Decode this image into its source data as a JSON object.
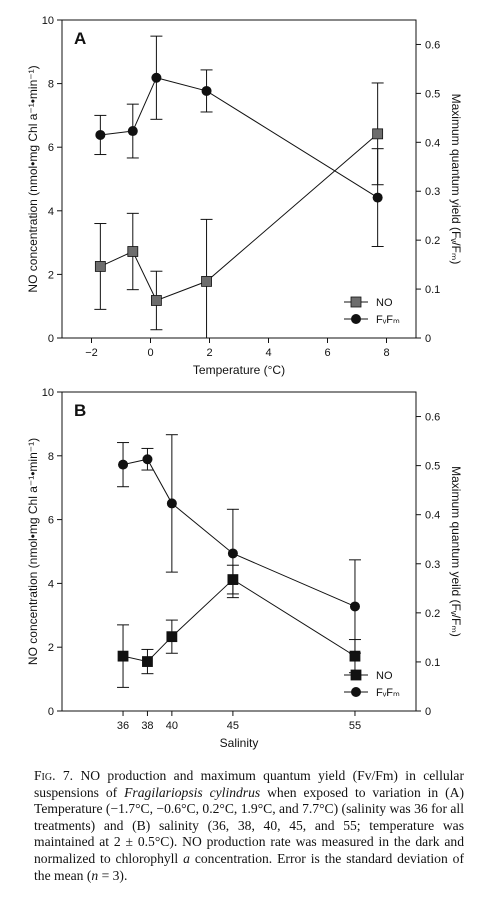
{
  "chart_data": [
    {
      "type": "line",
      "panel_label": "A",
      "xlabel": "Temperature (°C)",
      "ylabel": "NO concentration (nmol•mg Chl a⁻¹•min⁻¹)",
      "y2label": "Maximum quantum yield (Fᵥ/Fₘ)",
      "xlim": [
        -3,
        9
      ],
      "ylim": [
        0,
        10
      ],
      "y2lim": [
        0,
        0.65
      ],
      "xticks": [
        "-2",
        "0",
        "2",
        "4",
        "6",
        "8"
      ],
      "yticks": [
        "0",
        "2",
        "4",
        "6",
        "8",
        "10"
      ],
      "y2ticks": [
        "0",
        "0.1",
        "0.2",
        "0.3",
        "0.4",
        "0.5",
        "0.6"
      ],
      "legend_position": "bottom-right",
      "series": [
        {
          "name": "NO",
          "axis": "left",
          "marker": "square",
          "color": "#6d6d6d",
          "x": [
            -1.7,
            -0.6,
            0.2,
            1.9,
            7.7
          ],
          "y": [
            2.25,
            2.72,
            1.18,
            1.78,
            6.42
          ],
          "err": [
            1.35,
            1.2,
            0.92,
            1.95,
            1.6
          ]
        },
        {
          "name": "FᵥFₘ",
          "axis": "right",
          "marker": "circle",
          "color": "#111111",
          "x": [
            -1.7,
            -0.6,
            0.2,
            1.9,
            7.7
          ],
          "y": [
            0.415,
            0.423,
            0.532,
            0.505,
            0.287
          ],
          "err": [
            0.04,
            0.055,
            0.085,
            0.043,
            0.1
          ]
        }
      ]
    },
    {
      "type": "line",
      "panel_label": "B",
      "xlabel": "Salinity",
      "ylabel": "NO concentration (nmol•mg Chl a⁻¹•min⁻¹)",
      "y2label": "Maximum quantum yeild (Fᵥ/Fₘ)",
      "xlim": [
        31,
        60
      ],
      "ylim": [
        0,
        10
      ],
      "y2lim": [
        0,
        0.65
      ],
      "xticks": [
        "36",
        "38",
        "40",
        "45",
        "55"
      ],
      "yticks": [
        "0",
        "2",
        "4",
        "6",
        "8",
        "10"
      ],
      "y2ticks": [
        "0",
        "0.1",
        "0.2",
        "0.3",
        "0.4",
        "0.5",
        "0.6"
      ],
      "legend_position": "bottom-right",
      "series": [
        {
          "name": "NO",
          "axis": "left",
          "marker": "square",
          "color": "#111111",
          "x": [
            36,
            38,
            40,
            45,
            55
          ],
          "y": [
            1.72,
            1.55,
            2.33,
            4.12,
            1.72
          ],
          "err": [
            0.98,
            0.38,
            0.52,
            0.45,
            0.52
          ]
        },
        {
          "name": "FᵥFₘ",
          "axis": "right",
          "marker": "circle",
          "color": "#111111",
          "x": [
            36,
            38,
            40,
            45,
            55
          ],
          "y": [
            0.502,
            0.513,
            0.423,
            0.321,
            0.213
          ],
          "err": [
            0.045,
            0.022,
            0.14,
            0.09,
            0.095
          ]
        }
      ]
    }
  ],
  "caption": {
    "label": "Fig. 7.",
    "text_before": " NO production and maximum quantum yield (Fv/Fm) in cellular suspensions of ",
    "species": "Fragilariopsis cylindrus",
    "text_mid1": " when exposed to variation in (A) Temperature (−1.7°C, −0.6°C, 0.2°C, 1.9°C, and 7.7°C) (salinity was 36 for all treatments) and (B) salinity (36, 38, 40, 45, and 55; temperature was maintained at 2 ± 0.5°C). NO production rate was measured in the dark and normalized to chlorophyll ",
    "chl_a": "a",
    "text_mid2": " concentration. Error is the standard deviation of the mean (",
    "n_var": "n",
    "text_end": " = 3)."
  }
}
